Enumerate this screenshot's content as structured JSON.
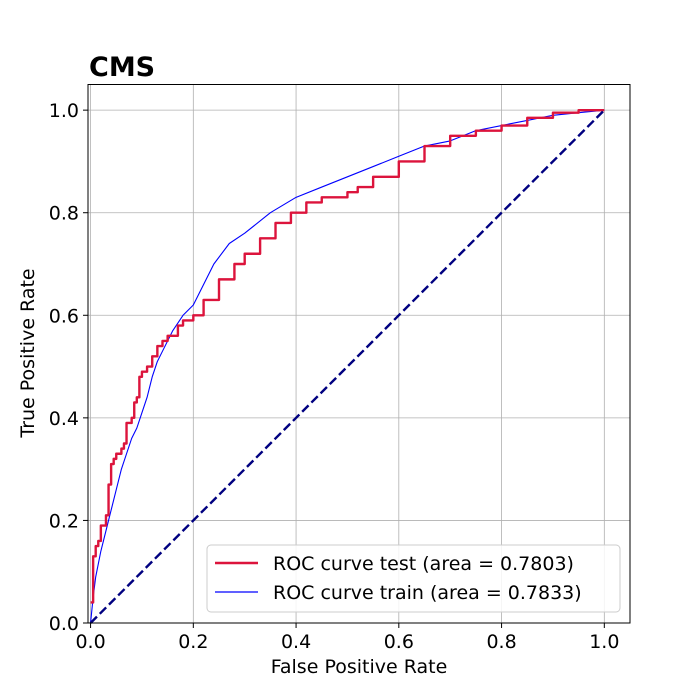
{
  "chart_data": {
    "type": "line",
    "title": "CMS",
    "xlabel": "False Positive Rate",
    "ylabel": "True Positive Rate",
    "xlim": [
      -0.005,
      1.05
    ],
    "ylim": [
      0.0,
      1.05
    ],
    "xticks": [
      "0.0",
      "0.2",
      "0.4",
      "0.6",
      "0.8",
      "1.0"
    ],
    "yticks": [
      "0.0",
      "0.2",
      "0.4",
      "0.6",
      "0.8",
      "1.0"
    ],
    "grid": true,
    "legend_position": "lower-right",
    "series": [
      {
        "name": "ROC curve test (area = 0.7803)",
        "color": "#dc143c",
        "style": "solid-step",
        "points": [
          [
            0.0,
            0.04
          ],
          [
            0.005,
            0.13
          ],
          [
            0.01,
            0.15
          ],
          [
            0.015,
            0.16
          ],
          [
            0.02,
            0.19
          ],
          [
            0.03,
            0.21
          ],
          [
            0.035,
            0.27
          ],
          [
            0.04,
            0.31
          ],
          [
            0.045,
            0.32
          ],
          [
            0.05,
            0.33
          ],
          [
            0.06,
            0.34
          ],
          [
            0.065,
            0.35
          ],
          [
            0.07,
            0.39
          ],
          [
            0.08,
            0.4
          ],
          [
            0.085,
            0.43
          ],
          [
            0.09,
            0.44
          ],
          [
            0.095,
            0.48
          ],
          [
            0.1,
            0.49
          ],
          [
            0.11,
            0.5
          ],
          [
            0.12,
            0.52
          ],
          [
            0.13,
            0.54
          ],
          [
            0.14,
            0.55
          ],
          [
            0.15,
            0.56
          ],
          [
            0.17,
            0.58
          ],
          [
            0.18,
            0.59
          ],
          [
            0.2,
            0.6
          ],
          [
            0.22,
            0.63
          ],
          [
            0.25,
            0.67
          ],
          [
            0.28,
            0.7
          ],
          [
            0.3,
            0.72
          ],
          [
            0.33,
            0.75
          ],
          [
            0.36,
            0.78
          ],
          [
            0.39,
            0.8
          ],
          [
            0.42,
            0.82
          ],
          [
            0.45,
            0.83
          ],
          [
            0.5,
            0.84
          ],
          [
            0.52,
            0.85
          ],
          [
            0.55,
            0.87
          ],
          [
            0.6,
            0.9
          ],
          [
            0.65,
            0.93
          ],
          [
            0.7,
            0.95
          ],
          [
            0.75,
            0.96
          ],
          [
            0.8,
            0.97
          ],
          [
            0.85,
            0.985
          ],
          [
            0.9,
            0.995
          ],
          [
            0.95,
            1.0
          ],
          [
            1.0,
            1.0
          ]
        ]
      },
      {
        "name": "ROC curve train (area = 0.7833)",
        "color": "#0000ff",
        "style": "solid-thin",
        "points": [
          [
            0.0,
            0.0
          ],
          [
            0.005,
            0.05
          ],
          [
            0.01,
            0.09
          ],
          [
            0.02,
            0.14
          ],
          [
            0.03,
            0.18
          ],
          [
            0.04,
            0.22
          ],
          [
            0.05,
            0.26
          ],
          [
            0.06,
            0.3
          ],
          [
            0.07,
            0.33
          ],
          [
            0.08,
            0.36
          ],
          [
            0.09,
            0.38
          ],
          [
            0.1,
            0.41
          ],
          [
            0.11,
            0.44
          ],
          [
            0.12,
            0.48
          ],
          [
            0.13,
            0.51
          ],
          [
            0.14,
            0.53
          ],
          [
            0.16,
            0.57
          ],
          [
            0.18,
            0.6
          ],
          [
            0.2,
            0.62
          ],
          [
            0.22,
            0.66
          ],
          [
            0.24,
            0.7
          ],
          [
            0.27,
            0.74
          ],
          [
            0.3,
            0.76
          ],
          [
            0.35,
            0.8
          ],
          [
            0.4,
            0.83
          ],
          [
            0.45,
            0.85
          ],
          [
            0.5,
            0.87
          ],
          [
            0.55,
            0.89
          ],
          [
            0.6,
            0.91
          ],
          [
            0.65,
            0.93
          ],
          [
            0.7,
            0.94
          ],
          [
            0.75,
            0.96
          ],
          [
            0.8,
            0.97
          ],
          [
            0.85,
            0.98
          ],
          [
            0.9,
            0.99
          ],
          [
            0.95,
            0.995
          ],
          [
            1.0,
            1.0
          ]
        ]
      },
      {
        "color": "#000080",
        "style": "dashed",
        "points": [
          [
            0.0,
            0.0
          ],
          [
            1.0,
            1.0
          ]
        ]
      }
    ]
  }
}
